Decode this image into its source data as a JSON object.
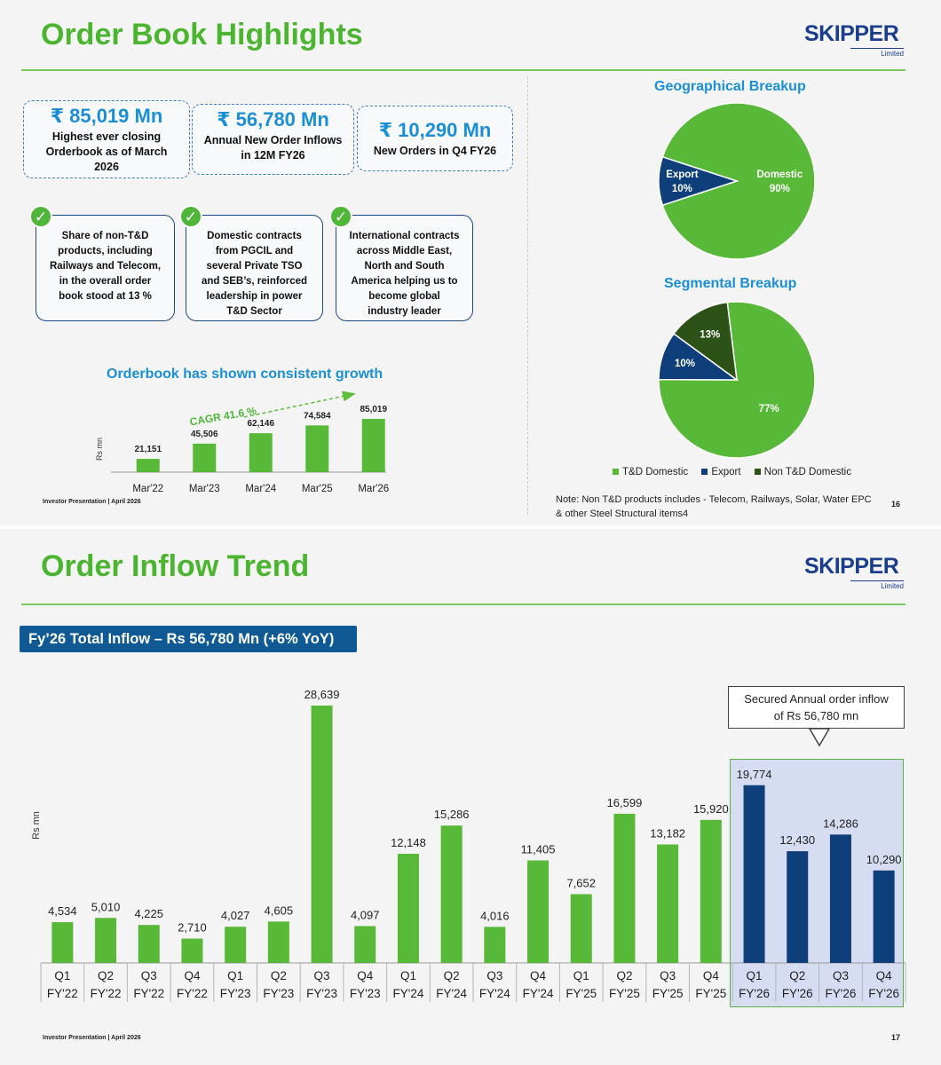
{
  "slide1": {
    "title": "Order Book Highlights",
    "logo": {
      "wordmark": "SKIPPER",
      "sub": "Limited"
    },
    "kpis": [
      {
        "value": "₹ 85,019 Mn",
        "desc": "Highest ever closing Orderbook as of March 2026"
      },
      {
        "value": "₹ 56,780 Mn",
        "desc": "Annual New Order Inflows in 12M FY26"
      },
      {
        "value": "₹ 10,290 Mn",
        "desc": "New Orders in Q4 FY26"
      }
    ],
    "notes": [
      {
        "text": "Share of non-T&D products, including Railways and Telecom, in the overall order book stood at 13 %"
      },
      {
        "text": "Domestic contracts from PGCIL and several Private TSO and SEB’s, reinforced leadership in power T&D Sector"
      },
      {
        "text": "International contracts across Middle East, North and South America helping us to become global industry leader"
      }
    ],
    "check_glyph": "✓",
    "geo_title": "Geographical Breakup",
    "seg_title": "Segmental Breakup",
    "legend": [
      "T&D Domestic",
      "Export",
      "Non T&D Domestic"
    ],
    "footnote_line1": "Note: Non T&D  products includes  - Telecom, Railways, Solar, Water EPC",
    "footnote_line2": "&  other Steel Structural items4",
    "footer": "Investor Presentation | April 2026",
    "page": "16"
  },
  "slide2": {
    "title": "Order Inflow Trend",
    "logo": {
      "wordmark": "SKIPPER",
      "sub": "Limited"
    },
    "banner": "Fy’26 Total Inflow – Rs 56,780 Mn (+6% YoY)",
    "callout_line1": "Secured Annual order inflow",
    "callout_line2": "of Rs 56,780 mn",
    "footer": "Investor Presentation | April 2026",
    "page": "17"
  },
  "colors": {
    "green": "#58b838",
    "navy": "#0f3f7a",
    "dark_green": "#2c5217",
    "title_green": "#4cb530",
    "blue": "#1b8fd6"
  },
  "chart_data": [
    {
      "type": "bar",
      "title": "Orderbook has shown consistent growth",
      "categories": [
        "Mar'22",
        "Mar'23",
        "Mar'24",
        "Mar'25",
        "Mar'26"
      ],
      "values": [
        21151,
        45506,
        62146,
        74584,
        85019
      ],
      "value_labels": [
        "21,151",
        "45,506",
        "62,146",
        "74,584",
        "85,019"
      ],
      "ylabel": "Rs mn",
      "annotation": "CAGR 41.6 %",
      "ylim": [
        0,
        100000
      ]
    },
    {
      "type": "pie",
      "title": "Geographical Breakup",
      "labels": [
        "Domestic",
        "Export"
      ],
      "values": [
        90,
        10
      ],
      "label_text": [
        "Domestic\n90%",
        "Export\n10%"
      ]
    },
    {
      "type": "pie",
      "title": "Segmental Breakup",
      "labels": [
        "T&D Domestic",
        "Export",
        "Non T&D Domestic"
      ],
      "values": [
        77,
        10,
        13
      ],
      "label_text": [
        "77%",
        "10%",
        "13%"
      ]
    },
    {
      "type": "bar",
      "title": "Order Inflow Trend",
      "ylabel": "Rs mn",
      "categories": [
        "Q1 FY'22",
        "Q2 FY'22",
        "Q3 FY'22",
        "Q4 FY'22",
        "Q1 FY'23",
        "Q2 FY'23",
        "Q3 FY'23",
        "Q4 FY'23",
        "Q1 FY'24",
        "Q2 FY'24",
        "Q3 FY'24",
        "Q4 FY'24",
        "Q1 FY'25",
        "Q2 FY'25",
        "Q3 FY'25",
        "Q4 FY'25",
        "Q1 FY'26",
        "Q2 FY'26",
        "Q3 FY'26",
        "Q4 FY'26"
      ],
      "values": [
        4534,
        5010,
        4225,
        2710,
        4027,
        4605,
        28639,
        4097,
        12148,
        15286,
        4016,
        11405,
        7652,
        16599,
        13182,
        15920,
        19774,
        12430,
        14286,
        10290
      ],
      "value_labels": [
        "4,534",
        "5,010",
        "4,225",
        "2,710",
        "4,027",
        "4,605",
        "28,639",
        "4,097",
        "12,148",
        "15,286",
        "4,016",
        "11,405",
        "7,652",
        "16,599",
        "13,182",
        "15,920",
        "19,774",
        "12,430",
        "14,286",
        "10,290"
      ],
      "highlighted_from_index": 16,
      "ylim": [
        0,
        30000
      ]
    }
  ]
}
